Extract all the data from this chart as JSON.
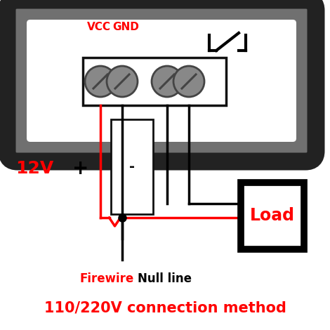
{
  "bg_color": "#ffffff",
  "title": "110/220V connection method",
  "title_color": "#ff0000",
  "title_fontsize": 15,
  "vcc_label": "VCC",
  "gnd_label": "GND",
  "vcc_color": "#ff0000",
  "gnd_color": "#ff0000",
  "label_12v": "12V",
  "label_plus": "+",
  "label_minus": "-",
  "firewire_label": "Firewire",
  "nullline_label": "Null line",
  "load_label": "Load",
  "load_color": "#ff0000",
  "wire_red": "#ff0000",
  "wire_black": "#000000",
  "device_fill": "#707070",
  "device_edge": "#222222",
  "terminal_fill": "#ffffff",
  "terminal_edge": "#111111",
  "screw_fill": "#888888",
  "screw_edge": "#444444",
  "load_edge": "#000000",
  "load_fill": "#ffffff",
  "inner_box_fill": "#ffffff",
  "inner_box_edge": "#111111"
}
